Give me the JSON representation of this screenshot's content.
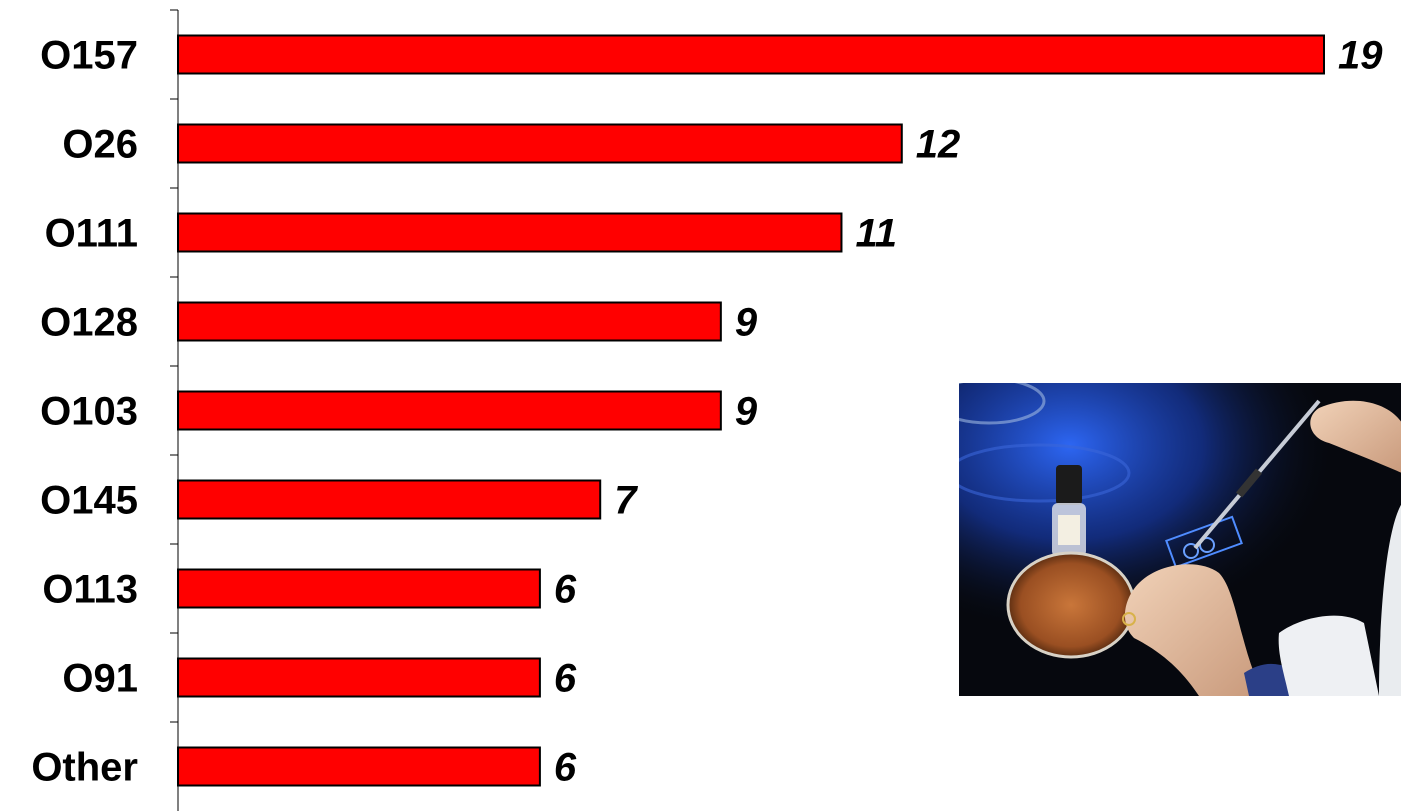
{
  "chart_data": {
    "type": "bar",
    "orientation": "horizontal",
    "categories": [
      "O157",
      "O26",
      "O111",
      "O128",
      "O103",
      "O145",
      "O113",
      "O91",
      "Other"
    ],
    "values": [
      19,
      12,
      11,
      9,
      9,
      7,
      6,
      6,
      6
    ],
    "value_labels": [
      "19",
      "12",
      "11",
      "9",
      "9",
      "7",
      "6",
      "6",
      "6"
    ],
    "title": "",
    "xlabel": "",
    "ylabel": "",
    "xlim": [
      0,
      19
    ],
    "grid": false,
    "legend": "none",
    "bar_color": "#ff0000",
    "bar_edge_color": "#000000"
  },
  "photo": {
    "icon": "lab-photo-icon",
    "description_colors": {
      "background": "#0a0d14",
      "blue_glow": "#1a4bd6",
      "dish": "#b5652e"
    }
  }
}
